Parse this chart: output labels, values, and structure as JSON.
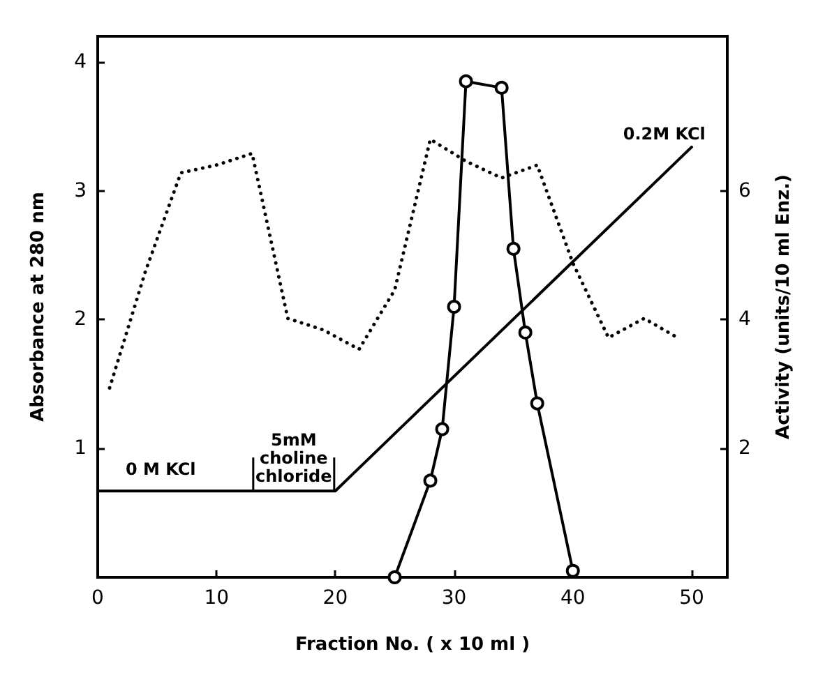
{
  "chart_data": {
    "type": "line",
    "xlabel": "Fraction No. ( x 10 ml )",
    "ylabel": "Absorbance at 280 nm",
    "y2label": "Activity (units/10 ml Enz.)",
    "xlim": [
      0,
      53
    ],
    "xticks": [
      0,
      10,
      20,
      30,
      40,
      50
    ],
    "ylim": [
      0,
      4.2
    ],
    "yticks": [
      1,
      2,
      3,
      4
    ],
    "y2lim": [
      0,
      8.4
    ],
    "y2ticks": [
      2,
      4,
      6
    ],
    "series": [
      {
        "color": "#000000",
        "line_style": "dotted",
        "marker": "none",
        "x": [
          1,
          4,
          7,
          10,
          13,
          16,
          19,
          22,
          25,
          28,
          31,
          34,
          37,
          40,
          43,
          46,
          49
        ],
        "values": [
          1.47,
          2.37,
          3.14,
          3.2,
          3.29,
          2.01,
          1.92,
          1.77,
          2.23,
          3.4,
          3.23,
          3.1,
          3.2,
          2.44,
          1.86,
          2.01,
          1.85
        ]
      },
      {
        "color": "#000000",
        "line_style": "solid",
        "marker": "circle",
        "axis": "y2",
        "x": [
          25,
          28,
          29,
          30,
          31,
          34,
          35,
          36,
          37,
          40
        ],
        "values": [
          0,
          1.5,
          2.3,
          4.2,
          7.7,
          7.6,
          5.1,
          3.8,
          2.7,
          0.1
        ]
      },
      {
        "color": "#000000",
        "line_style": "solid",
        "marker": "none",
        "x": [
          0,
          20,
          50
        ],
        "values": [
          0.67,
          0.67,
          3.34
        ]
      }
    ],
    "annotations": [
      "0 M KCl",
      {
        "text": "5mM\ncholine\nchloride",
        "x": 16.5,
        "y": 0.67
      },
      "0.2M KCl"
    ]
  }
}
